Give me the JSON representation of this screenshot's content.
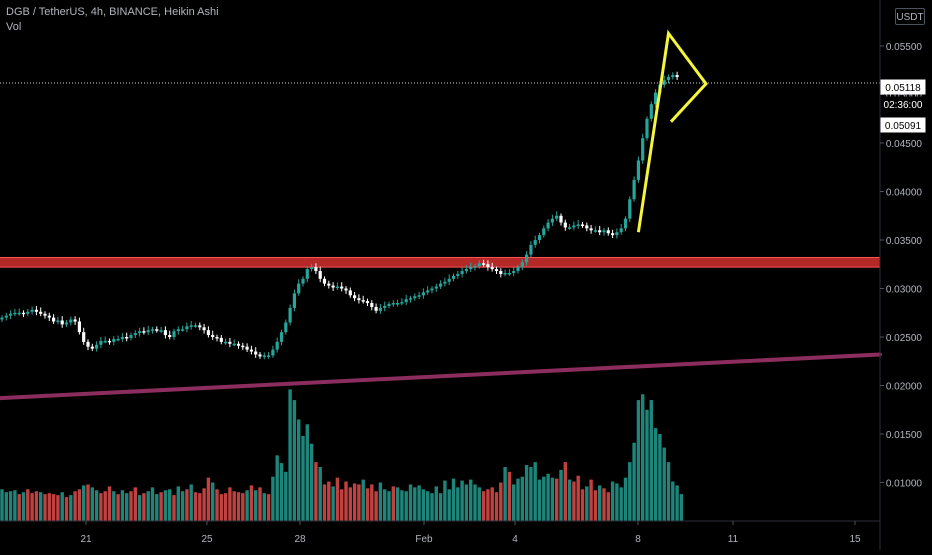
{
  "legend": {
    "symbol_line": "DGB / TetherUS, 4h, BINANCE, Heikin Ashi",
    "indicator": "Vol"
  },
  "currency_button": "USDT",
  "price_axis": {
    "labels": [
      "0.05500",
      "0.05000",
      "0.04500",
      "0.04000",
      "0.03500",
      "0.03000",
      "0.02500",
      "0.02000",
      "0.01500",
      "0.01000"
    ]
  },
  "time_axis": {
    "labels": [
      "21",
      "25",
      "28",
      "Feb",
      "4",
      "8",
      "11",
      "15"
    ]
  },
  "price_tags": {
    "last_price": "0.05118",
    "countdown": "02:36:00",
    "second_price": "0.05091"
  },
  "colors": {
    "up": "#26a69a",
    "down": "#ffffff",
    "vol_up": "#26a69a",
    "vol_down": "#ef5350",
    "support_zone": "#d32f2f",
    "trendline": "#8b2d5e",
    "pattern": "#f5f53c",
    "axis_text": "#b2b5be"
  },
  "chart_data": {
    "type": "candlestick",
    "title": "DGB / TetherUS, 4h, BINANCE, Heikin Ashi",
    "ylim": [
      0.0045,
      0.0575
    ],
    "x_ticks": [
      "21",
      "25",
      "28",
      "Feb",
      "4",
      "8",
      "11",
      "15"
    ],
    "close_series": [
      0.027,
      0.0272,
      0.0274,
      0.0275,
      0.0275,
      0.0274,
      0.0276,
      0.0278,
      0.0276,
      0.0274,
      0.0272,
      0.027,
      0.0266,
      0.0267,
      0.0263,
      0.0265,
      0.0268,
      0.0266,
      0.0255,
      0.0245,
      0.024,
      0.0238,
      0.0242,
      0.0246,
      0.0246,
      0.0245,
      0.0248,
      0.0248,
      0.025,
      0.0249,
      0.0252,
      0.0254,
      0.0256,
      0.0255,
      0.0257,
      0.0258,
      0.0257,
      0.0257,
      0.0252,
      0.025,
      0.0256,
      0.0258,
      0.0258,
      0.0261,
      0.0262,
      0.0262,
      0.026,
      0.0257,
      0.0252,
      0.025,
      0.0249,
      0.0245,
      0.0245,
      0.0243,
      0.0243,
      0.0241,
      0.024,
      0.0237,
      0.0235,
      0.0232,
      0.023,
      0.0231,
      0.0231,
      0.0237,
      0.0245,
      0.0255,
      0.0265,
      0.028,
      0.0295,
      0.0305,
      0.031,
      0.032,
      0.0322,
      0.0318,
      0.031,
      0.0305,
      0.0303,
      0.0301,
      0.0302,
      0.03,
      0.0298,
      0.0293,
      0.029,
      0.0288,
      0.0287,
      0.0285,
      0.0281,
      0.0277,
      0.028,
      0.0282,
      0.0284,
      0.0285,
      0.0285,
      0.0286,
      0.0289,
      0.029,
      0.0292,
      0.0293,
      0.0296,
      0.0298,
      0.03,
      0.0302,
      0.0305,
      0.0307,
      0.031,
      0.0313,
      0.0315,
      0.0318,
      0.032,
      0.0322,
      0.0323,
      0.0326,
      0.0325,
      0.0322,
      0.032,
      0.0318,
      0.0315,
      0.0316,
      0.0316,
      0.0318,
      0.0322,
      0.0327,
      0.0335,
      0.0345,
      0.035,
      0.0355,
      0.0362,
      0.0368,
      0.0372,
      0.0375,
      0.0368,
      0.0363,
      0.0363,
      0.0365,
      0.0366,
      0.0365,
      0.0362,
      0.036,
      0.036,
      0.0358,
      0.036,
      0.0357,
      0.0355,
      0.0358,
      0.0362,
      0.0372,
      0.0392,
      0.0412,
      0.0432,
      0.0455,
      0.0475,
      0.049,
      0.0502,
      0.051,
      0.0515,
      0.0518,
      0.052,
      0.0518
    ],
    "volume_series": [
      0.0093,
      0.009,
      0.0091,
      0.0092,
      0.0088,
      0.009,
      0.0093,
      0.0089,
      0.0091,
      0.009,
      0.0088,
      0.0089,
      0.0088,
      0.0087,
      0.009,
      0.0085,
      0.0087,
      0.0091,
      0.0093,
      0.0097,
      0.0098,
      0.0095,
      0.0092,
      0.0089,
      0.0091,
      0.0096,
      0.0091,
      0.0088,
      0.0092,
      0.0089,
      0.0091,
      0.0095,
      0.0087,
      0.0089,
      0.0091,
      0.0095,
      0.0088,
      0.009,
      0.0092,
      0.0093,
      0.0087,
      0.0096,
      0.0091,
      0.0093,
      0.0098,
      0.009,
      0.0089,
      0.0094,
      0.0105,
      0.01,
      0.0093,
      0.0088,
      0.0089,
      0.0095,
      0.0091,
      0.009,
      0.0089,
      0.0092,
      0.0097,
      0.0092,
      0.0095,
      0.0089,
      0.0088,
      0.0106,
      0.0128,
      0.012,
      0.0111,
      0.0196,
      0.0185,
      0.0165,
      0.0148,
      0.016,
      0.014,
      0.0121,
      0.0116,
      0.0098,
      0.0101,
      0.0096,
      0.0105,
      0.0093,
      0.0101,
      0.0095,
      0.0099,
      0.0098,
      0.0103,
      0.0094,
      0.0098,
      0.0091,
      0.01,
      0.0093,
      0.0091,
      0.0096,
      0.0095,
      0.0092,
      0.0091,
      0.0098,
      0.0095,
      0.0097,
      0.0093,
      0.0091,
      0.0089,
      0.0096,
      0.0089,
      0.0102,
      0.0093,
      0.0104,
      0.0095,
      0.0102,
      0.0098,
      0.0103,
      0.0098,
      0.0095,
      0.0091,
      0.0093,
      0.0095,
      0.009,
      0.01,
      0.0116,
      0.0111,
      0.0098,
      0.0104,
      0.0106,
      0.0118,
      0.0116,
      0.0121,
      0.0103,
      0.0106,
      0.0109,
      0.0105,
      0.0104,
      0.0113,
      0.0121,
      0.0103,
      0.0101,
      0.0107,
      0.0093,
      0.0096,
      0.0103,
      0.0092,
      0.0097,
      0.0094,
      0.009,
      0.0101,
      0.0099,
      0.0095,
      0.0105,
      0.0121,
      0.0141,
      0.0185,
      0.0191,
      0.0175,
      0.0185,
      0.0156,
      0.015,
      0.0136,
      0.0121,
      0.0101,
      0.0097,
      0.0088
    ],
    "volume_direction": [
      "up",
      "up",
      "up",
      "up",
      "down",
      "up",
      "down",
      "down",
      "down",
      "up",
      "down",
      "down",
      "down",
      "down",
      "up",
      "down",
      "up",
      "down",
      "down",
      "up",
      "down",
      "up",
      "up",
      "down",
      "down",
      "down",
      "up",
      "down",
      "up",
      "up",
      "down",
      "down",
      "up",
      "down",
      "up",
      "up",
      "up",
      "down",
      "up",
      "up",
      "down",
      "up",
      "up",
      "down",
      "up",
      "down",
      "down",
      "down",
      "down",
      "up",
      "down",
      "down",
      "down",
      "down",
      "down",
      "down",
      "down",
      "up",
      "down",
      "up",
      "down",
      "up",
      "down",
      "up",
      "up",
      "up",
      "up",
      "up",
      "up",
      "up",
      "up",
      "up",
      "up",
      "down",
      "up",
      "down",
      "down",
      "up",
      "down",
      "down",
      "down",
      "down",
      "down",
      "down",
      "up",
      "down",
      "down",
      "down",
      "up",
      "up",
      "up",
      "down",
      "up",
      "up",
      "up",
      "up",
      "up",
      "up",
      "up",
      "up",
      "up",
      "up",
      "up",
      "up",
      "up",
      "up",
      "up",
      "up",
      "up",
      "up",
      "up",
      "up",
      "down",
      "down",
      "down",
      "down",
      "down",
      "up",
      "down",
      "up",
      "up",
      "up",
      "up",
      "up",
      "up",
      "up",
      "up",
      "up",
      "up",
      "down",
      "up",
      "down",
      "up",
      "down",
      "down",
      "down",
      "up",
      "down",
      "down",
      "up",
      "down",
      "down",
      "up",
      "up",
      "up",
      "up",
      "up",
      "up",
      "up",
      "up",
      "up",
      "up",
      "up",
      "up",
      "up",
      "up",
      "up",
      "up",
      "up",
      "down"
    ],
    "support_zone": [
      0.0322,
      0.0332
    ],
    "trendline": [
      [
        0,
        0.0187
      ],
      [
        1,
        0.0232
      ]
    ],
    "pattern_points": [
      [
        0.0358,
        0
      ],
      [
        0.0563,
        1
      ],
      [
        0.0511,
        2
      ],
      [
        0.0472,
        3
      ]
    ],
    "last_price": 0.05118
  }
}
